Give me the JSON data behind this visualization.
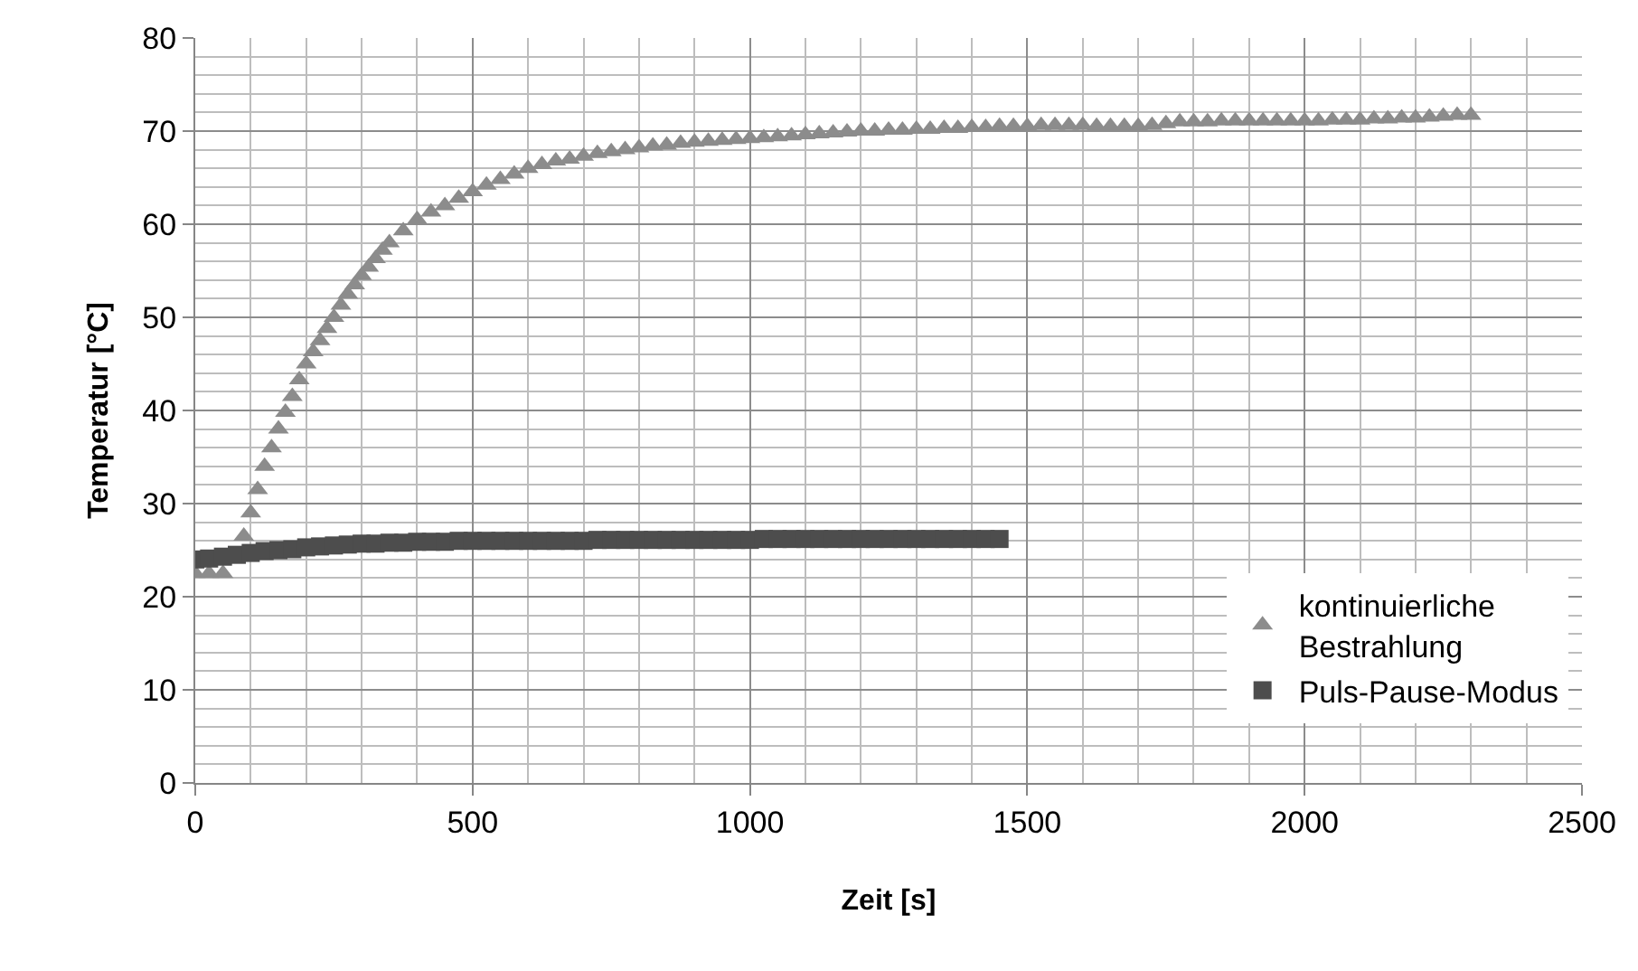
{
  "chart_data": {
    "type": "scatter",
    "xlabel": "Zeit [s]",
    "ylabel": "Temperatur [°C]",
    "xlim": [
      0,
      2500
    ],
    "xticks": [
      0,
      500,
      1000,
      1500,
      2000,
      2500
    ],
    "ylim": [
      0,
      80
    ],
    "yticks": [
      0,
      10,
      20,
      30,
      40,
      50,
      60,
      70,
      80
    ],
    "grid": true,
    "legend": "bottom right",
    "series": [
      {
        "name": "kontinuierliche Bestrahlung",
        "color": "#8c8c8c",
        "marker": "triangle",
        "x": [
          0,
          25,
          50,
          75,
          87.5,
          100,
          112.5,
          125,
          137.5,
          150,
          162.5,
          175,
          187.5,
          200,
          212.5,
          225,
          237.5,
          250,
          262.5,
          275,
          287.5,
          300,
          312.5,
          325,
          337.5,
          350,
          375,
          400,
          425,
          450,
          475,
          500,
          525,
          550,
          575,
          600,
          625,
          650,
          675,
          700,
          725,
          750,
          775,
          800,
          825,
          850,
          875,
          900,
          925,
          950,
          975,
          1000,
          1025,
          1050,
          1075,
          1100,
          1125,
          1150,
          1175,
          1200,
          1225,
          1250,
          1275,
          1300,
          1325,
          1350,
          1375,
          1400,
          1425,
          1450,
          1475,
          1500,
          1525,
          1550,
          1575,
          1600,
          1625,
          1650,
          1675,
          1700,
          1725,
          1750,
          1775,
          1800,
          1825,
          1850,
          1875,
          1900,
          1925,
          1950,
          1975,
          2000,
          2025,
          2050,
          2075,
          2100,
          2125,
          2150,
          2175,
          2200,
          2225,
          2250,
          2275,
          2300
        ],
        "values": [
          22.5,
          22.5,
          22.5,
          null,
          26.5,
          29,
          31.5,
          34,
          36,
          38,
          39.8,
          41.5,
          43.3,
          45,
          46.3,
          47.5,
          48.8,
          50,
          51.3,
          52.5,
          53.5,
          54.5,
          55.4,
          56.3,
          57.2,
          58,
          59.3,
          60.5,
          61.3,
          62,
          62.8,
          63.5,
          64.2,
          64.8,
          65.4,
          66,
          66.4,
          66.8,
          67,
          67.3,
          67.6,
          67.8,
          68,
          68.2,
          68.4,
          68.5,
          68.7,
          68.8,
          68.9,
          69,
          69.1,
          69.2,
          69.3,
          69.4,
          69.5,
          69.6,
          69.7,
          69.8,
          69.9,
          70,
          70,
          70.1,
          70.1,
          70.2,
          70.2,
          70.3,
          70.3,
          70.4,
          70.4,
          70.5,
          70.5,
          70.5,
          70.6,
          70.6,
          70.6,
          70.6,
          70.5,
          70.5,
          70.5,
          70.5,
          70.6,
          70.8,
          71,
          71,
          71,
          71.1,
          71.1,
          71.1,
          71.1,
          71.1,
          71.1,
          71.1,
          71.1,
          71.2,
          71.2,
          71.2,
          71.3,
          71.3,
          71.4,
          71.4,
          71.5,
          71.6,
          71.7,
          71.7
        ]
      },
      {
        "name": "Puls-Pause-Modus",
        "color": "#4d4d4d",
        "marker": "square",
        "x": [
          0,
          25,
          50,
          75,
          100,
          125,
          150,
          175,
          200,
          225,
          250,
          275,
          300,
          325,
          350,
          375,
          400,
          425,
          450,
          475,
          500,
          525,
          550,
          575,
          600,
          625,
          650,
          675,
          700,
          725,
          750,
          775,
          800,
          825,
          850,
          875,
          900,
          925,
          950,
          975,
          1000,
          1025,
          1050,
          1075,
          1100,
          1125,
          1150,
          1175,
          1200,
          1225,
          1250,
          1275,
          1300,
          1325,
          1350,
          1375,
          1400,
          1425,
          1450
        ],
        "values": [
          24,
          24.1,
          24.3,
          24.5,
          24.7,
          24.9,
          25,
          25.1,
          25.3,
          25.4,
          25.5,
          25.6,
          25.7,
          25.7,
          25.8,
          25.8,
          25.9,
          25.9,
          25.9,
          26,
          26,
          26,
          26,
          26,
          26,
          26,
          26,
          26,
          26,
          26.1,
          26.1,
          26.1,
          26.1,
          26.1,
          26.1,
          26.1,
          26.1,
          26.1,
          26.1,
          26.1,
          26.1,
          26.2,
          26.2,
          26.2,
          26.2,
          26.2,
          26.2,
          26.2,
          26.2,
          26.2,
          26.2,
          26.2,
          26.2,
          26.2,
          26.2,
          26.2,
          26.2,
          26.2,
          26.2
        ]
      }
    ]
  }
}
